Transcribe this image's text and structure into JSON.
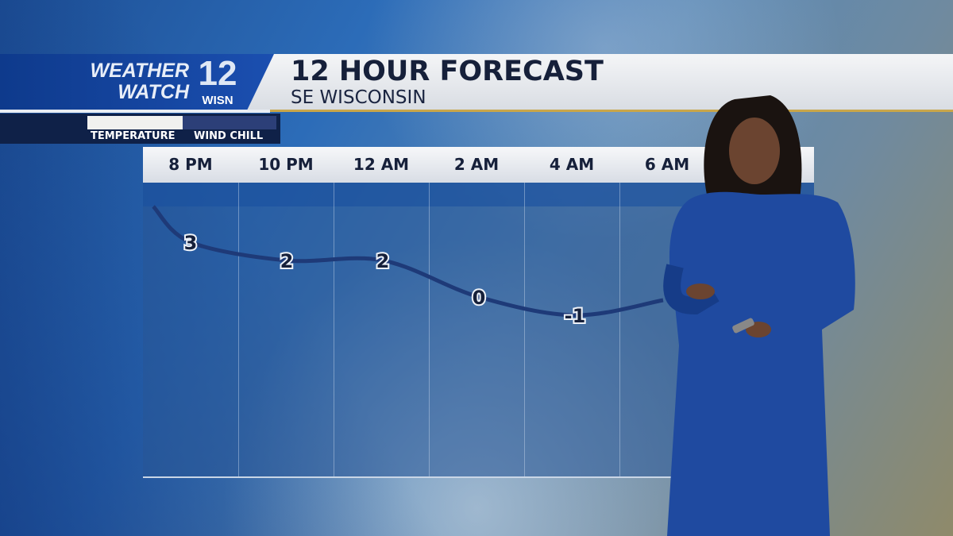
{
  "branding": {
    "line1": "WEATHER",
    "line2": "WATCH",
    "channel_number": "12",
    "station": "WISN"
  },
  "header": {
    "title": "12 HOUR FORECAST",
    "subtitle": "SE WISCONSIN"
  },
  "legend": {
    "items": [
      {
        "label": "TEMPERATURE",
        "color": "#f1f1ef",
        "active": true
      },
      {
        "label": "WIND CHILL",
        "color": "#2c3f78",
        "active": false
      }
    ]
  },
  "chart_data": {
    "type": "line",
    "title": "12 HOUR FORECAST",
    "subtitle": "SE WISCONSIN",
    "categories": [
      "8 PM",
      "10 PM",
      "12 AM",
      "2 AM",
      "4 AM",
      "6 AM"
    ],
    "series": [
      {
        "name": "WIND CHILL",
        "values": [
          3,
          2,
          2,
          0,
          -1,
          null
        ]
      }
    ],
    "line_color": "#1e3a78",
    "grid": true
  }
}
